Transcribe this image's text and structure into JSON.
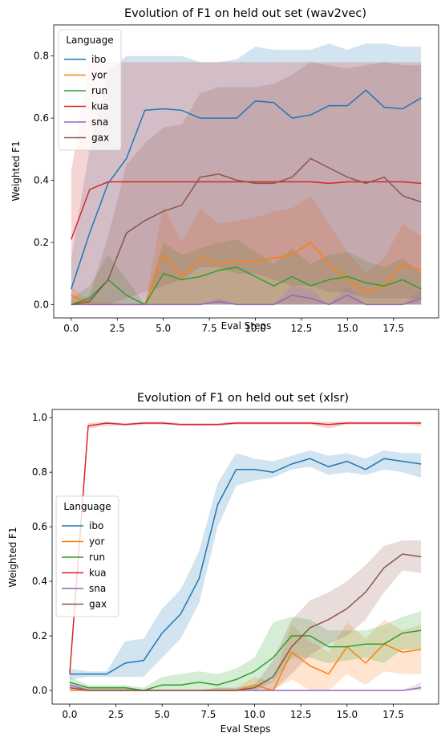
{
  "chart_data": [
    {
      "type": "line",
      "title": "Evolution of F1 on held out set (wav2vec)",
      "xlabel": "Eval Steps",
      "ylabel": "Weighted F1",
      "xlim": [
        -0.95,
        19.95
      ],
      "ylim": [
        -0.043,
        0.9
      ],
      "xticks": [
        "0.0",
        "2.5",
        "5.0",
        "7.5",
        "10.0",
        "12.5",
        "15.0",
        "17.5"
      ],
      "xtick_values": [
        0,
        2.5,
        5,
        7.5,
        10,
        12.5,
        15,
        17.5
      ],
      "yticks": [
        "0.0",
        "0.2",
        "0.4",
        "0.6",
        "0.8"
      ],
      "ytick_values": [
        0,
        0.2,
        0.4,
        0.6,
        0.8
      ],
      "legend_title": "Language",
      "legend_position": "upper-left",
      "x": [
        0,
        1,
        2,
        3,
        4,
        5,
        6,
        7,
        8,
        9,
        10,
        11,
        12,
        13,
        14,
        15,
        16,
        17,
        18,
        19
      ],
      "series": [
        {
          "name": "ibo",
          "color": "#1f77b4",
          "values": [
            0.05,
            0.23,
            0.39,
            0.47,
            0.625,
            0.63,
            0.625,
            0.6,
            0.6,
            0.6,
            0.655,
            0.65,
            0.6,
            0.61,
            0.64,
            0.64,
            0.69,
            0.635,
            0.63,
            0.665
          ],
          "lower": [
            0.0,
            0.0,
            0.0,
            0.0,
            0.0,
            0.0,
            0.0,
            0.0,
            0.0,
            0.0,
            0.0,
            0.0,
            0.0,
            0.0,
            0.0,
            0.0,
            0.0,
            0.0,
            0.0,
            0.0
          ],
          "upper": [
            0.15,
            0.5,
            0.75,
            0.8,
            0.8,
            0.8,
            0.8,
            0.78,
            0.78,
            0.79,
            0.83,
            0.82,
            0.82,
            0.82,
            0.84,
            0.82,
            0.84,
            0.84,
            0.83,
            0.83
          ]
        },
        {
          "name": "yor",
          "color": "#ff7f0e",
          "values": [
            0.03,
            0.0,
            0.0,
            0.0,
            0.0,
            0.16,
            0.09,
            0.15,
            0.13,
            0.14,
            0.14,
            0.15,
            0.16,
            0.2,
            0.13,
            0.08,
            0.04,
            0.06,
            0.13,
            0.11
          ],
          "lower": [
            0.0,
            0.0,
            0.0,
            0.0,
            0.0,
            0.0,
            0.0,
            0.0,
            0.0,
            0.0,
            0.0,
            0.0,
            0.0,
            0.0,
            0.0,
            0.0,
            0.0,
            0.0,
            0.0,
            0.0
          ],
          "upper": [
            0.06,
            0.01,
            0.01,
            0.0,
            0.0,
            0.32,
            0.2,
            0.31,
            0.26,
            0.27,
            0.28,
            0.3,
            0.31,
            0.35,
            0.26,
            0.17,
            0.1,
            0.15,
            0.26,
            0.22
          ]
        },
        {
          "name": "run",
          "color": "#2ca02c",
          "values": [
            0.0,
            0.02,
            0.08,
            0.03,
            0.0,
            0.1,
            0.08,
            0.09,
            0.11,
            0.12,
            0.09,
            0.06,
            0.09,
            0.06,
            0.08,
            0.09,
            0.07,
            0.06,
            0.08,
            0.05
          ],
          "lower": [
            0.0,
            0.0,
            0.0,
            0.0,
            0.0,
            0.0,
            0.0,
            0.0,
            0.0,
            0.0,
            0.0,
            0.0,
            0.0,
            0.0,
            0.0,
            0.0,
            0.0,
            0.0,
            0.0,
            0.0
          ],
          "upper": [
            0.02,
            0.06,
            0.16,
            0.08,
            0.0,
            0.2,
            0.16,
            0.18,
            0.2,
            0.21,
            0.17,
            0.13,
            0.18,
            0.13,
            0.16,
            0.17,
            0.14,
            0.12,
            0.15,
            0.1
          ]
        },
        {
          "name": "kua",
          "color": "#d62728",
          "values": [
            0.21,
            0.37,
            0.395,
            0.395,
            0.395,
            0.395,
            0.395,
            0.395,
            0.395,
            0.395,
            0.395,
            0.395,
            0.395,
            0.395,
            0.39,
            0.395,
            0.395,
            0.395,
            0.395,
            0.39
          ],
          "lower": [
            0.0,
            0.0,
            0.0,
            0.0,
            0.0,
            0.0,
            0.0,
            0.0,
            0.0,
            0.0,
            0.0,
            0.0,
            0.0,
            0.0,
            0.0,
            0.0,
            0.0,
            0.0,
            0.0,
            0.0
          ],
          "upper": [
            0.43,
            0.78,
            0.78,
            0.78,
            0.78,
            0.78,
            0.78,
            0.78,
            0.78,
            0.78,
            0.78,
            0.78,
            0.78,
            0.78,
            0.78,
            0.78,
            0.78,
            0.78,
            0.78,
            0.78
          ]
        },
        {
          "name": "sna",
          "color": "#9467bd",
          "values": [
            0.0,
            0.0,
            0.0,
            0.0,
            0.0,
            0.0,
            0.0,
            0.0,
            0.01,
            0.0,
            0.0,
            0.0,
            0.03,
            0.02,
            0.0,
            0.03,
            0.0,
            0.0,
            0.0,
            0.02
          ],
          "lower": [
            0.0,
            0.0,
            0.0,
            0.0,
            0.0,
            0.0,
            0.0,
            0.0,
            0.0,
            0.0,
            0.0,
            0.0,
            0.0,
            0.0,
            0.0,
            0.0,
            0.0,
            0.0,
            0.0,
            0.0
          ],
          "upper": [
            0.0,
            0.0,
            0.0,
            0.0,
            0.0,
            0.0,
            0.0,
            0.0,
            0.02,
            0.0,
            0.0,
            0.0,
            0.06,
            0.05,
            0.0,
            0.06,
            0.0,
            0.0,
            0.0,
            0.05
          ]
        },
        {
          "name": "gax",
          "color": "#8c564b",
          "values": [
            0.0,
            0.01,
            0.08,
            0.23,
            0.27,
            0.3,
            0.32,
            0.41,
            0.42,
            0.4,
            0.39,
            0.39,
            0.41,
            0.47,
            0.44,
            0.41,
            0.39,
            0.41,
            0.35,
            0.33
          ],
          "lower": [
            0.0,
            0.0,
            0.0,
            0.02,
            0.04,
            0.06,
            0.08,
            0.12,
            0.12,
            0.1,
            0.1,
            0.08,
            0.06,
            0.06,
            0.04,
            0.04,
            0.02,
            0.02,
            0.02,
            0.02
          ],
          "upper": [
            0.0,
            0.03,
            0.22,
            0.45,
            0.52,
            0.57,
            0.58,
            0.68,
            0.7,
            0.7,
            0.7,
            0.71,
            0.74,
            0.78,
            0.77,
            0.76,
            0.77,
            0.78,
            0.77,
            0.77
          ]
        }
      ]
    },
    {
      "type": "line",
      "title": "Evolution of F1 on held out set (xlsr)",
      "xlabel": "Eval Steps",
      "ylabel": "Weighted F1",
      "xlim": [
        -0.95,
        19.95
      ],
      "ylim": [
        -0.05,
        1.03
      ],
      "xticks": [
        "0.0",
        "2.5",
        "5.0",
        "7.5",
        "10.0",
        "12.5",
        "15.0",
        "17.5"
      ],
      "xtick_values": [
        0,
        2.5,
        5,
        7.5,
        10,
        12.5,
        15,
        17.5
      ],
      "yticks": [
        "0.0",
        "0.2",
        "0.4",
        "0.6",
        "0.8",
        "1.0"
      ],
      "ytick_values": [
        0,
        0.2,
        0.4,
        0.6,
        0.8,
        1.0
      ],
      "legend_title": "Language",
      "legend_position": "center-left",
      "x": [
        0,
        1,
        2,
        3,
        4,
        5,
        6,
        7,
        8,
        9,
        10,
        11,
        12,
        13,
        14,
        15,
        16,
        17,
        18,
        19
      ],
      "series": [
        {
          "name": "ibo",
          "color": "#1f77b4",
          "values": [
            0.06,
            0.06,
            0.06,
            0.1,
            0.11,
            0.21,
            0.28,
            0.41,
            0.68,
            0.81,
            0.81,
            0.8,
            0.83,
            0.85,
            0.82,
            0.84,
            0.81,
            0.85,
            0.84,
            0.83
          ],
          "lower": [
            0.04,
            0.05,
            0.05,
            0.05,
            0.05,
            0.12,
            0.19,
            0.32,
            0.6,
            0.75,
            0.77,
            0.78,
            0.81,
            0.82,
            0.79,
            0.8,
            0.79,
            0.81,
            0.8,
            0.78
          ],
          "upper": [
            0.08,
            0.07,
            0.07,
            0.18,
            0.19,
            0.3,
            0.37,
            0.51,
            0.76,
            0.87,
            0.85,
            0.84,
            0.86,
            0.88,
            0.86,
            0.87,
            0.85,
            0.88,
            0.87,
            0.87
          ]
        },
        {
          "name": "yor",
          "color": "#ff7f0e",
          "values": [
            0.0,
            0.0,
            0.0,
            0.0,
            0.0,
            0.0,
            0.0,
            0.0,
            0.0,
            0.0,
            0.02,
            0.0,
            0.14,
            0.09,
            0.06,
            0.16,
            0.1,
            0.17,
            0.14,
            0.15
          ],
          "lower": [
            0.0,
            0.0,
            0.0,
            0.0,
            0.0,
            0.0,
            0.0,
            0.0,
            0.0,
            0.0,
            0.0,
            0.0,
            0.04,
            0.0,
            0.0,
            0.06,
            0.02,
            0.07,
            0.06,
            0.06
          ],
          "upper": [
            0.01,
            0.01,
            0.01,
            0.01,
            0.0,
            0.0,
            0.0,
            0.0,
            0.01,
            0.01,
            0.05,
            0.03,
            0.24,
            0.18,
            0.14,
            0.25,
            0.19,
            0.26,
            0.22,
            0.24
          ]
        },
        {
          "name": "run",
          "color": "#2ca02c",
          "values": [
            0.03,
            0.01,
            0.01,
            0.01,
            0.0,
            0.02,
            0.02,
            0.03,
            0.02,
            0.04,
            0.07,
            0.12,
            0.2,
            0.2,
            0.16,
            0.16,
            0.17,
            0.17,
            0.21,
            0.22
          ],
          "lower": [
            0.02,
            0.0,
            0.0,
            0.0,
            0.0,
            0.0,
            0.0,
            0.0,
            0.0,
            0.0,
            0.0,
            0.03,
            0.12,
            0.12,
            0.1,
            0.11,
            0.12,
            0.1,
            0.15,
            0.15
          ],
          "upper": [
            0.05,
            0.02,
            0.02,
            0.02,
            0.01,
            0.05,
            0.06,
            0.07,
            0.06,
            0.08,
            0.12,
            0.25,
            0.27,
            0.26,
            0.22,
            0.22,
            0.22,
            0.24,
            0.27,
            0.29
          ]
        },
        {
          "name": "kua",
          "color": "#d62728",
          "values": [
            0.06,
            0.97,
            0.98,
            0.975,
            0.98,
            0.98,
            0.975,
            0.975,
            0.975,
            0.98,
            0.98,
            0.98,
            0.98,
            0.98,
            0.975,
            0.98,
            0.98,
            0.98,
            0.98,
            0.98
          ],
          "lower": [
            0.05,
            0.96,
            0.97,
            0.97,
            0.975,
            0.975,
            0.97,
            0.97,
            0.97,
            0.975,
            0.975,
            0.975,
            0.975,
            0.975,
            0.96,
            0.975,
            0.975,
            0.975,
            0.975,
            0.97
          ],
          "upper": [
            0.07,
            0.98,
            0.985,
            0.98,
            0.985,
            0.985,
            0.98,
            0.98,
            0.98,
            0.985,
            0.985,
            0.985,
            0.985,
            0.985,
            0.985,
            0.985,
            0.985,
            0.985,
            0.985,
            0.985
          ]
        },
        {
          "name": "sna",
          "color": "#9467bd",
          "values": [
            0.02,
            0.0,
            0.0,
            0.0,
            0.0,
            0.0,
            0.0,
            0.0,
            0.0,
            0.0,
            0.0,
            0.0,
            0.0,
            0.0,
            0.0,
            0.0,
            0.0,
            0.0,
            0.0,
            0.01
          ],
          "lower": [
            0.01,
            0.0,
            0.0,
            0.0,
            0.0,
            0.0,
            0.0,
            0.0,
            0.0,
            0.0,
            0.0,
            0.0,
            0.0,
            0.0,
            0.0,
            0.0,
            0.0,
            0.0,
            0.0,
            0.0
          ],
          "upper": [
            0.03,
            0.0,
            0.0,
            0.0,
            0.0,
            0.0,
            0.0,
            0.0,
            0.0,
            0.0,
            0.0,
            0.0,
            0.0,
            0.0,
            0.0,
            0.0,
            0.0,
            0.0,
            0.0,
            0.03
          ]
        },
        {
          "name": "gax",
          "color": "#8c564b",
          "values": [
            0.01,
            0.0,
            0.0,
            0.0,
            0.0,
            0.0,
            0.0,
            0.0,
            0.0,
            0.0,
            0.01,
            0.05,
            0.16,
            0.23,
            0.26,
            0.3,
            0.36,
            0.45,
            0.5,
            0.49
          ],
          "lower": [
            0.0,
            0.0,
            0.0,
            0.0,
            0.0,
            0.0,
            0.0,
            0.0,
            0.0,
            0.0,
            0.0,
            0.0,
            0.06,
            0.13,
            0.17,
            0.2,
            0.26,
            0.36,
            0.44,
            0.43
          ],
          "upper": [
            0.02,
            0.01,
            0.01,
            0.01,
            0.0,
            0.0,
            0.0,
            0.0,
            0.01,
            0.01,
            0.02,
            0.11,
            0.26,
            0.33,
            0.36,
            0.4,
            0.46,
            0.53,
            0.55,
            0.55
          ]
        }
      ]
    }
  ]
}
